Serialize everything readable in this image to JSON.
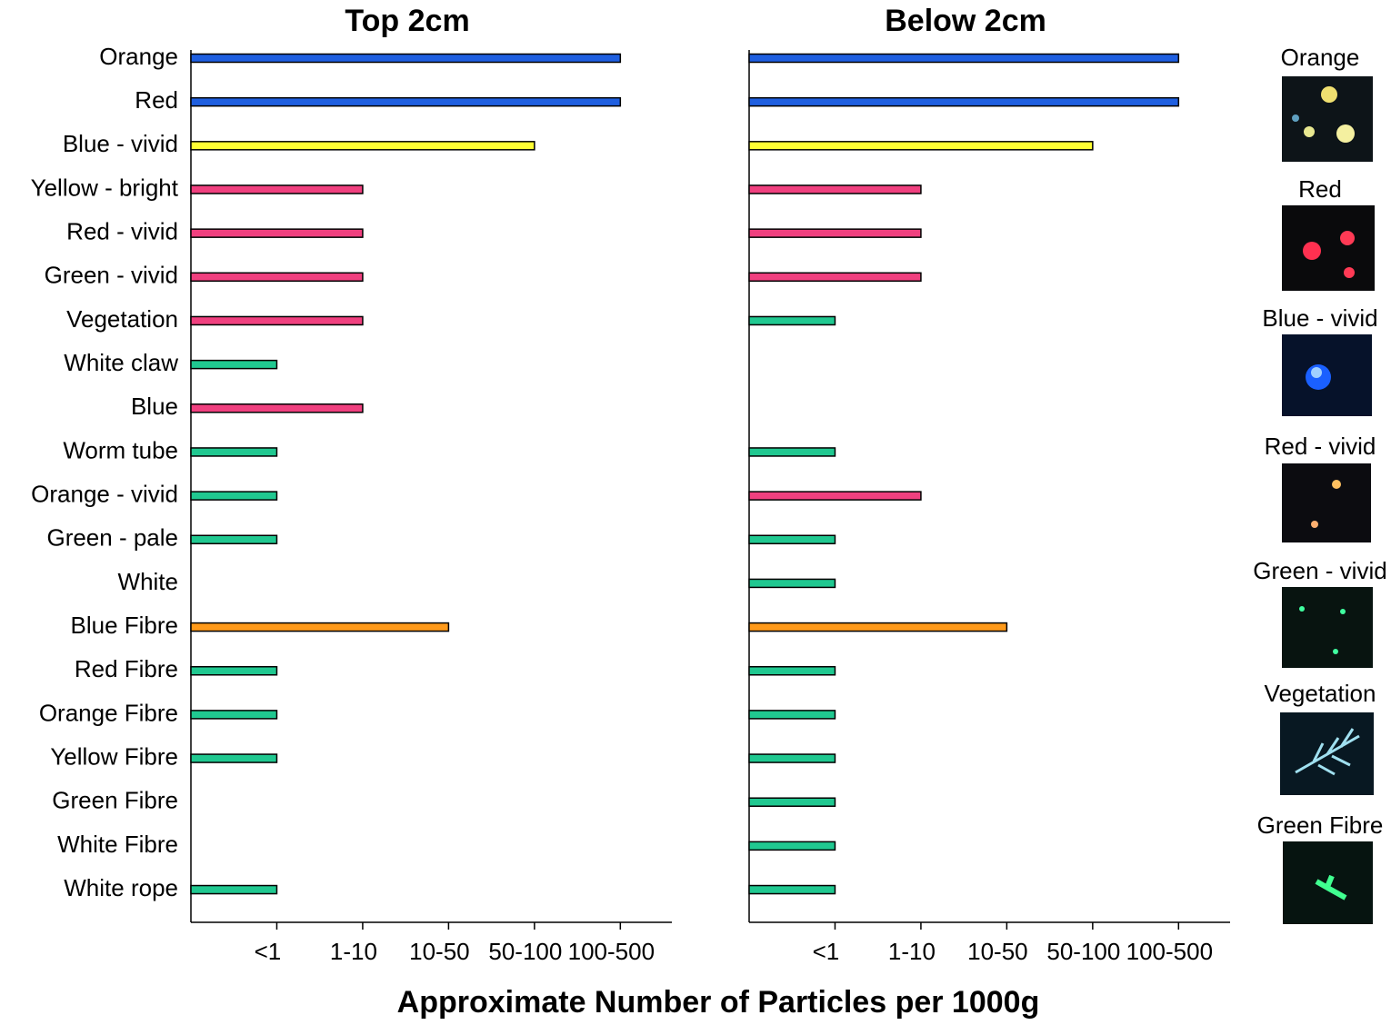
{
  "categories": [
    "Orange",
    "Red",
    "Blue - vivid",
    "Yellow - bright",
    "Red - vivid",
    "Green - vivid",
    "Vegetation",
    "White claw",
    "Blue",
    "Worm tube",
    "Orange - vivid",
    "Green - pale",
    "White",
    "Blue Fibre",
    "Red Fibre",
    "Orange Fibre",
    "Yellow Fibre",
    "Green Fibre",
    "White Fibre",
    "White rope"
  ],
  "xlabel": "Approximate Number of Particles per 1000g",
  "chart_data": [
    {
      "type": "bar",
      "title": "Top 2cm",
      "xlim": [
        0,
        5.6
      ],
      "xticks": [
        {
          "value": 1,
          "label": "<1"
        },
        {
          "value": 2,
          "label": "1-10"
        },
        {
          "value": 3,
          "label": "10-50"
        },
        {
          "value": 4,
          "label": "50-100"
        },
        {
          "value": 5,
          "label": "100-500"
        }
      ],
      "series": [
        {
          "values": [
            5,
            5,
            4,
            2,
            2,
            2,
            2,
            1,
            2,
            1,
            1,
            1,
            null,
            3,
            1,
            1,
            1,
            null,
            null,
            1
          ],
          "colors": [
            "#1f5fe0",
            "#1f5fe0",
            "#ffff33",
            "#f0407f",
            "#f0407f",
            "#f0407f",
            "#f0407f",
            "#20c890",
            "#f0407f",
            "#20c890",
            "#20c890",
            "#20c890",
            null,
            "#ff9a1a",
            "#20c890",
            "#20c890",
            "#20c890",
            null,
            null,
            "#20c890"
          ]
        }
      ]
    },
    {
      "type": "bar",
      "title": "Below 2cm",
      "xlim": [
        0,
        5.6
      ],
      "xticks": [
        {
          "value": 1,
          "label": "<1"
        },
        {
          "value": 2,
          "label": "1-10"
        },
        {
          "value": 3,
          "label": "10-50"
        },
        {
          "value": 4,
          "label": "50-100"
        },
        {
          "value": 5,
          "label": "100-500"
        }
      ],
      "series": [
        {
          "values": [
            5,
            5,
            4,
            2,
            2,
            2,
            1,
            null,
            null,
            1,
            2,
            1,
            1,
            3,
            1,
            1,
            1,
            1,
            1,
            1
          ],
          "colors": [
            "#1f5fe0",
            "#1f5fe0",
            "#ffff33",
            "#f0407f",
            "#f0407f",
            "#f0407f",
            "#20c890",
            null,
            null,
            "#20c890",
            "#f0407f",
            "#20c890",
            "#20c890",
            "#ff9a1a",
            "#20c890",
            "#20c890",
            "#20c890",
            "#20c890",
            "#20c890",
            "#20c890"
          ]
        }
      ]
    }
  ],
  "images": [
    "Orange",
    "Red",
    "Blue - vivid",
    "Red - vivid",
    "Green - vivid",
    "Vegetation",
    "Green Fibre"
  ]
}
